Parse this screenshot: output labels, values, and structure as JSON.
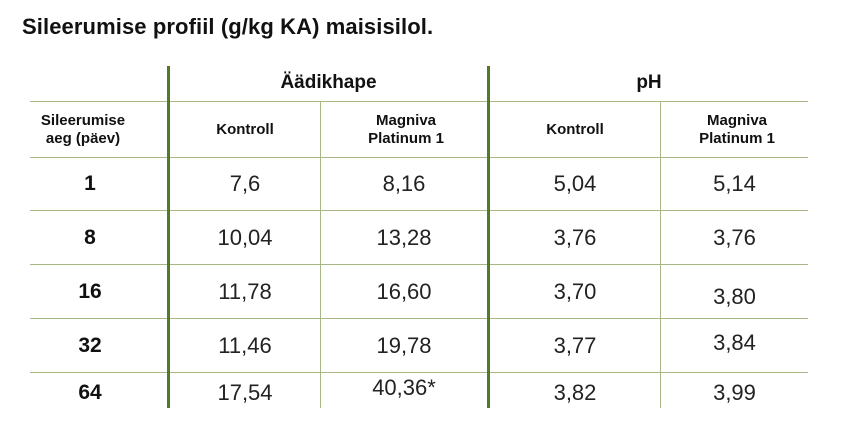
{
  "title": "Sileerumise profiil (g/kg KA) maisisilol.",
  "groups": {
    "acetic": "Äädikhape",
    "ph": "pH"
  },
  "headers": {
    "time": "Sileerumise aeg (päev)",
    "acetic_control": "Kontroll",
    "acetic_treated": "Magniva Platinum 1",
    "ph_control": "Kontroll",
    "ph_treated": "Magniva Platinum 1"
  },
  "rows": [
    {
      "day": "1",
      "acetic_control": "7,6",
      "acetic_treated": "8,16",
      "ph_control": "5,04",
      "ph_treated": "5,14"
    },
    {
      "day": "8",
      "acetic_control": "10,04",
      "acetic_treated": "13,28",
      "ph_control": "3,76",
      "ph_treated": "3,76"
    },
    {
      "day": "16",
      "acetic_control": "11,78",
      "acetic_treated": "16,60",
      "ph_control": "3,70",
      "ph_treated": "3,80"
    },
    {
      "day": "32",
      "acetic_control": "11,46",
      "acetic_treated": "19,78",
      "ph_control": "3,77",
      "ph_treated": "3,84"
    },
    {
      "day": "64",
      "acetic_control": "17,54",
      "acetic_treated": "40,36*",
      "ph_control": "3,82",
      "ph_treated": "3,99"
    }
  ],
  "colors": {
    "rule_light": "#a6b783",
    "rule_dark": "#4f7a2a"
  }
}
